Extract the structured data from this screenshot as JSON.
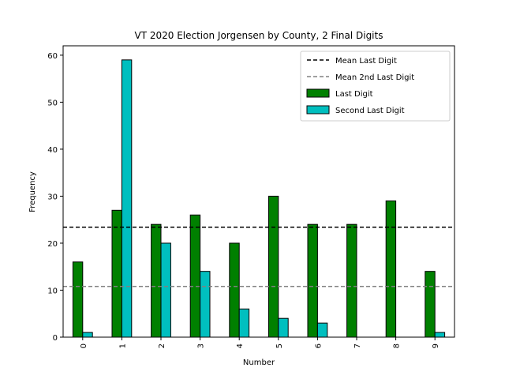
{
  "chart_data": {
    "type": "bar",
    "title": "VT 2020 Election Jorgensen by County, 2 Final Digits",
    "xlabel": "Number",
    "ylabel": "Frequency",
    "categories": [
      "0",
      "1",
      "2",
      "3",
      "4",
      "5",
      "6",
      "7",
      "8",
      "9"
    ],
    "series": [
      {
        "name": "Last Digit",
        "color": "#008000",
        "values": [
          16,
          27,
          24,
          26,
          20,
          30,
          24,
          24,
          29,
          14
        ]
      },
      {
        "name": "Second Last Digit",
        "color": "#00bfbf",
        "values": [
          1,
          59,
          20,
          14,
          6,
          4,
          3,
          0,
          0,
          1
        ]
      }
    ],
    "hlines": [
      {
        "name": "Mean Last Digit",
        "value": 23.4,
        "color": "#000000",
        "style": "dashed"
      },
      {
        "name": "Mean 2nd Last Digit",
        "value": 10.8,
        "color": "#808080",
        "style": "dashed"
      }
    ],
    "ylim": [
      0,
      62
    ],
    "yticks": [
      0,
      10,
      20,
      30,
      40,
      50,
      60
    ],
    "grid": false,
    "legend": "top-right"
  }
}
